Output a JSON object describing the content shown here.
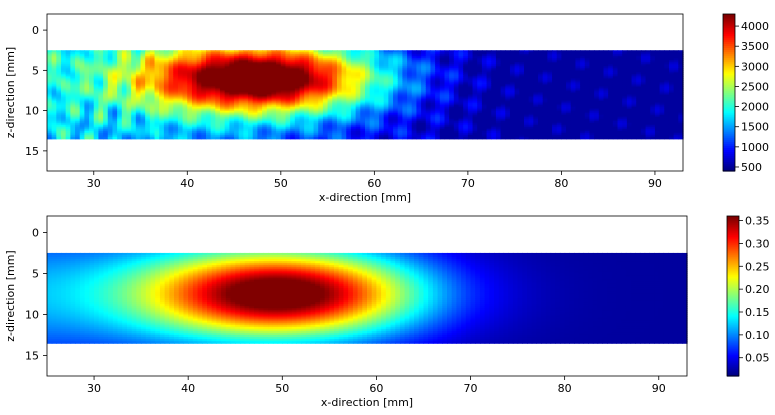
{
  "chart_data": [
    {
      "type": "heatmap",
      "colormap": "jet",
      "xlabel": "x-direction [mm]",
      "ylabel": "z-direction [mm]",
      "xlim": [
        25,
        93
      ],
      "ylim": [
        17.5,
        -2
      ],
      "xticks": [
        30,
        40,
        50,
        60,
        70,
        80,
        90
      ],
      "yticks": [
        0,
        5,
        10,
        15
      ],
      "data_extent": {
        "x": [
          25,
          93
        ],
        "z": [
          2.5,
          13.5
        ]
      },
      "peak": {
        "x": 48,
        "z": 6,
        "value": 4200
      },
      "clim": [
        400,
        4300
      ],
      "colorbar_ticks": [
        500,
        1000,
        1500,
        2000,
        2500,
        3000,
        3500,
        4000
      ],
      "texture": "measured"
    },
    {
      "type": "heatmap",
      "colormap": "jet",
      "xlabel": "x-direction [mm]",
      "ylabel": "z-direction [mm]",
      "xlim": [
        25,
        93
      ],
      "ylim": [
        17.5,
        -2
      ],
      "xticks": [
        30,
        40,
        50,
        60,
        70,
        80,
        90
      ],
      "yticks": [
        0,
        5,
        10,
        15
      ],
      "data_extent": {
        "x": [
          25,
          93
        ],
        "z": [
          2.5,
          13.5
        ]
      },
      "peak": {
        "x": 50,
        "z": 7.5,
        "value": 0.35
      },
      "clim": [
        0.01,
        0.36
      ],
      "colorbar_ticks": [
        0.05,
        0.1,
        0.15,
        0.2,
        0.25,
        0.3,
        0.35
      ],
      "texture": "smooth"
    }
  ]
}
